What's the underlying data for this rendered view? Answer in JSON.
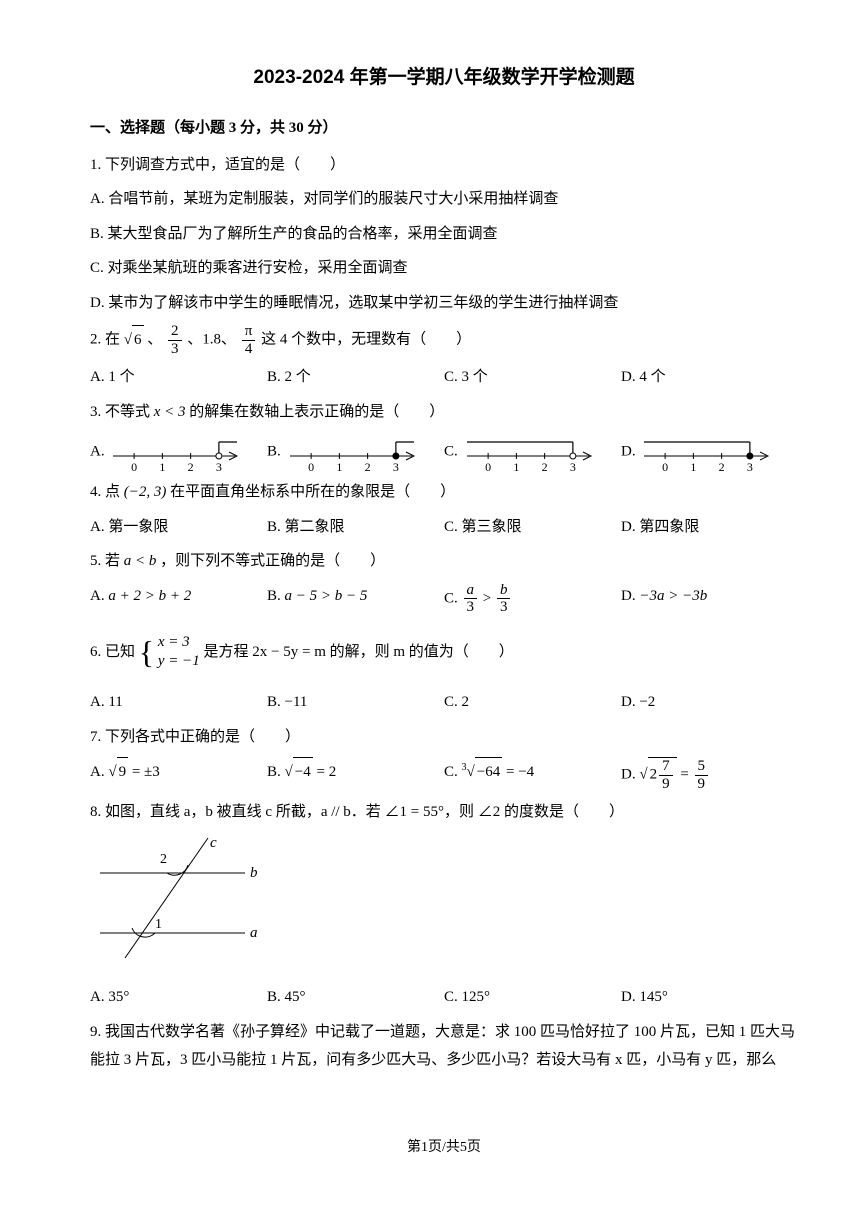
{
  "title": "2023-2024 年第一学期八年级数学开学检测题",
  "section1": "一、选择题（每小题 3 分，共 30 分）",
  "q1": {
    "stem": "1. 下列调查方式中，适宜的是（　　）",
    "A": "A. 合唱节前，某班为定制服装，对同学们的服装尺寸大小采用抽样调查",
    "B": "B. 某大型食品厂为了解所生产的食品的合格率，采用全面调查",
    "C": "C. 对乘坐某航班的乘客进行安检，采用全面调查",
    "D": "D. 某市为了解该市中学生的睡眠情况，选取某中学初三年级的学生进行抽样调查"
  },
  "q2": {
    "pre": "2. 在",
    "items_tail": "这 4 个数中，无理数有（　　）",
    "A": "A. 1 个",
    "B": "B. 2 个",
    "C": "C. 3 个",
    "D": "D. 4 个"
  },
  "q3": {
    "stem_pre": "3. 不等式 ",
    "stem_expr": "x < 3",
    "stem_post": " 的解集在数轴上表示正确的是（　　）",
    "labels": {
      "A": "A.",
      "B": "B.",
      "C": "C.",
      "D": "D."
    },
    "ticks": [
      0,
      1,
      2,
      3
    ],
    "style": {
      "axis_stroke": "#000",
      "axis_width": 1,
      "arrow_stroke": "#000",
      "arrow_width": 1.2,
      "tick_fontsize": 12,
      "circle_r": 3
    },
    "options": {
      "A": {
        "open": true,
        "dir": "right",
        "at": 3
      },
      "B": {
        "open": false,
        "dir": "right",
        "at": 3
      },
      "C": {
        "open": true,
        "dir": "left",
        "at": 3
      },
      "D": {
        "open": false,
        "dir": "left",
        "at": 3
      }
    }
  },
  "q4": {
    "pre": "4. 点 ",
    "point": "(−2, 3)",
    "post": " 在平面直角坐标系中所在的象限是（　　）",
    "A": "A. 第一象限",
    "B": "B. 第二象限",
    "C": "C. 第三象限",
    "D": "D. 第四象限"
  },
  "q5": {
    "pre": "5. 若 ",
    "cond": "a < b",
    "post": " ，则下列不等式正确的是（　　）",
    "A": "a + 2 > b + 2",
    "B": "a − 5 > b − 5",
    "D": "−3a > −3b"
  },
  "q6": {
    "pre": "6. 已知 ",
    "sys1": "x = 3",
    "sys2": "y = −1",
    "mid": " 是方程 2x − 5y = m 的解，则 m 的值为（　　）",
    "A": "A. 11",
    "B": "B. −11",
    "C": "C. 2",
    "D": "D. −2"
  },
  "q7": {
    "stem": "7. 下列各式中正确的是（　　）",
    "A_lhs": "9",
    "A_rhs": "±3",
    "B_lhs": "−4",
    "B_rhs": "2",
    "C_idx": "3",
    "C_lhs": "−64",
    "C_rhs": "−4",
    "D_whole": "2",
    "D_num": "7",
    "D_den": "9",
    "D_rnum": "5",
    "D_rden": "9"
  },
  "q8": {
    "stem": "8. 如图，直线 a，b 被直线 c 所截，a // b．若 ∠1 = 55°，则 ∠2 的度数是（　　）",
    "A": "A. 35°",
    "B": "B. 45°",
    "C": "C. 125°",
    "D": "D. 145°",
    "fig": {
      "labels": {
        "a": "a",
        "b": "b",
        "c": "c",
        "ang1": "1",
        "ang2": "2"
      },
      "style": {
        "stroke": "#000",
        "width": 1,
        "fontsize": 14,
        "font_italic": true
      }
    }
  },
  "q9": {
    "stem": "9. 我国古代数学名著《孙子算经》中记载了一道题，大意是：求 100 匹马恰好拉了 100 片瓦，已知 1 匹大马能拉 3 片瓦，3 匹小马能拉 1 片瓦，问有多少匹大马、多少匹小马？若设大马有 x 匹，小马有 y 匹，那么"
  },
  "footer": "第1页/共5页"
}
